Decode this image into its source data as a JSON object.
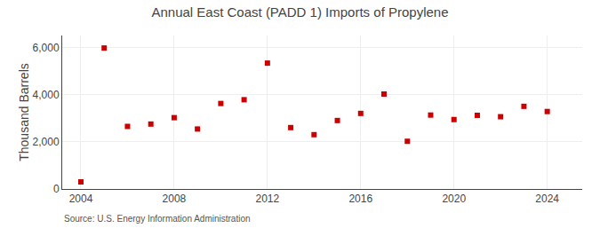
{
  "chart_data": {
    "type": "scatter",
    "title": "Annual East Coast (PADD 1) Imports of Propylene",
    "ylabel": "Thousand Barrels",
    "annotations": [
      "Source: U.S. Energy Information Administration"
    ],
    "x": [
      2004,
      2005,
      2006,
      2007,
      2008,
      2009,
      2010,
      2011,
      2012,
      2013,
      2014,
      2015,
      2016,
      2017,
      2018,
      2019,
      2020,
      2021,
      2022,
      2023,
      2024
    ],
    "values": [
      300,
      5970,
      2650,
      2750,
      3020,
      2540,
      3620,
      3780,
      5330,
      2600,
      2300,
      2900,
      3200,
      4020,
      2020,
      3130,
      2940,
      3120,
      3060,
      3500,
      3280
    ],
    "color": "#cc0000",
    "marker": "square",
    "xlim": [
      2003.2,
      2025.5
    ],
    "xticks": [
      2004,
      2008,
      2012,
      2016,
      2020,
      2024
    ],
    "ylim": [
      0,
      6500
    ],
    "yticks": [
      0,
      {
        "value": 2000,
        "label": "2,000"
      },
      {
        "value": 4000,
        "label": "4,000"
      },
      {
        "value": 6000,
        "label": "6,000"
      }
    ],
    "grid": true
  }
}
